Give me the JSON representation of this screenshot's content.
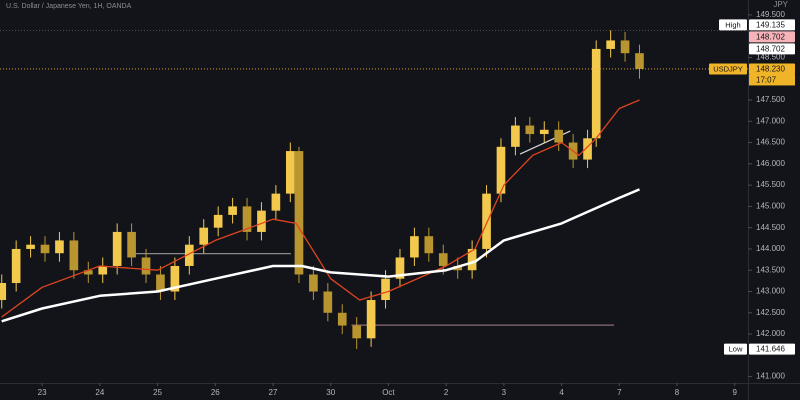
{
  "chart_data": {
    "type": "candlestick",
    "title": "U.S. Dollar / Japanese Yen, 1H, OANDA",
    "y_axis_label": "JPY",
    "x": [
      -0.7,
      -0.45,
      -0.2,
      0.05,
      0.3,
      0.55,
      0.8,
      1.05,
      1.3,
      1.55,
      1.8,
      2.05,
      2.3,
      2.55,
      2.8,
      3.05,
      3.3,
      3.55,
      3.8,
      4.05,
      4.3,
      4.45,
      4.7,
      4.95,
      5.2,
      5.45,
      5.7,
      5.95,
      6.2,
      6.45,
      6.7,
      6.95,
      7.2,
      7.45,
      7.7,
      7.95,
      8.2,
      8.45,
      8.7,
      8.95,
      9.2,
      9.45,
      9.6,
      9.85,
      10.1,
      10.35
    ],
    "open": [
      142.8,
      143.2,
      144.0,
      144.1,
      143.9,
      144.2,
      143.5,
      143.4,
      143.6,
      144.4,
      143.8,
      143.4,
      143.0,
      143.6,
      144.1,
      144.5,
      144.8,
      145.0,
      144.4,
      144.9,
      145.3,
      146.3,
      143.4,
      143.0,
      142.5,
      142.2,
      141.9,
      142.8,
      143.3,
      143.8,
      144.3,
      143.9,
      143.6,
      143.5,
      144.0,
      145.3,
      146.4,
      146.9,
      146.7,
      146.8,
      146.5,
      146.1,
      146.6,
      148.7,
      148.9,
      148.6
    ],
    "high": [
      143.4,
      144.2,
      144.3,
      144.3,
      144.4,
      144.4,
      143.7,
      143.8,
      144.6,
      144.6,
      144.0,
      143.6,
      143.8,
      144.3,
      144.7,
      145.0,
      145.2,
      145.2,
      145.1,
      145.5,
      146.5,
      146.4,
      143.6,
      143.2,
      142.7,
      142.4,
      143.0,
      143.5,
      144.0,
      144.5,
      144.5,
      144.1,
      143.8,
      144.2,
      145.5,
      146.6,
      147.1,
      147.1,
      147.0,
      147.0,
      146.7,
      146.8,
      148.9,
      149.135,
      149.1,
      148.8
    ],
    "low": [
      142.6,
      143.0,
      143.8,
      143.7,
      143.7,
      143.3,
      143.2,
      143.2,
      143.4,
      143.6,
      143.2,
      142.8,
      142.8,
      143.4,
      143.9,
      144.3,
      144.6,
      144.2,
      144.2,
      144.7,
      145.1,
      143.2,
      142.8,
      142.3,
      142.0,
      141.646,
      141.7,
      142.6,
      143.1,
      143.6,
      143.7,
      143.4,
      143.3,
      143.3,
      143.8,
      145.1,
      146.2,
      146.5,
      146.5,
      146.3,
      145.9,
      145.9,
      146.4,
      148.5,
      148.4,
      148.0
    ],
    "close": [
      143.2,
      144.0,
      144.1,
      143.9,
      144.2,
      143.5,
      143.4,
      143.6,
      144.4,
      143.8,
      143.4,
      143.0,
      143.6,
      144.1,
      144.5,
      144.8,
      145.0,
      144.4,
      144.9,
      145.3,
      146.3,
      143.4,
      143.0,
      142.5,
      142.2,
      141.9,
      142.8,
      143.3,
      143.8,
      144.3,
      143.9,
      143.6,
      143.5,
      144.0,
      145.3,
      146.4,
      146.9,
      146.7,
      146.8,
      146.5,
      146.1,
      146.6,
      148.7,
      148.9,
      148.6,
      148.23
    ],
    "up_color": "#f2c94c",
    "down_color": "#b8952e",
    "series": [
      {
        "color": "#e0451f",
        "x": [
          -0.7,
          0,
          1,
          2,
          3,
          4,
          4.4,
          5,
          5.5,
          6,
          7,
          7.5,
          8,
          8.5,
          9,
          9.3,
          9.6,
          10,
          10.35
        ],
        "values": [
          142.4,
          143.1,
          143.6,
          143.5,
          144.2,
          144.7,
          144.6,
          143.3,
          142.8,
          143.0,
          143.6,
          144.0,
          145.5,
          146.2,
          146.5,
          146.2,
          146.6,
          147.3,
          147.5
        ]
      },
      {
        "color": "#ffffff",
        "x": [
          -0.7,
          0,
          1,
          2,
          3,
          4,
          4.5,
          5,
          6,
          7,
          7.5,
          8,
          9,
          9.5,
          10,
          10.35
        ],
        "values": [
          142.3,
          142.6,
          142.9,
          143.0,
          143.3,
          143.6,
          143.6,
          143.45,
          143.35,
          143.5,
          143.7,
          144.2,
          144.6,
          144.9,
          145.2,
          145.4
        ]
      }
    ],
    "drawings": [
      {
        "color": "#8a8a8a",
        "x": [
          1.53,
          4.31
        ],
        "y": [
          143.89,
          143.89
        ]
      },
      {
        "color": "#8c6b78",
        "x": [
          5.36,
          9.91
        ],
        "y": [
          142.21,
          142.21
        ]
      },
      {
        "color": "#d8d8d8",
        "x": [
          8.28,
          9.15
        ],
        "y": [
          146.23,
          146.77
        ]
      }
    ],
    "price_labels": [
      {
        "name": "High",
        "value": 149.135,
        "color": "#ffffff",
        "text_color": "#131419"
      },
      {
        "value": 148.702,
        "color": "#f6b3b9",
        "text_color": "#131419"
      },
      {
        "value": 148.702,
        "color": "#ffffff",
        "text_color": "#131419"
      },
      {
        "name": "USDJPY",
        "value": 148.23,
        "label": "148.230",
        "countdown": "17:07",
        "color": "#f0b429",
        "text_color": "#131419"
      },
      {
        "name": "Low",
        "value": 141.646,
        "color": "#ffffff",
        "text_color": "#131419"
      }
    ],
    "xlim": [
      -0.73,
      12.23
    ],
    "xticks": [
      {
        "value": 0,
        "label": "23"
      },
      {
        "value": 1,
        "label": "24"
      },
      {
        "value": 2,
        "label": "25"
      },
      {
        "value": 3,
        "label": "26"
      },
      {
        "value": 4,
        "label": "27"
      },
      {
        "value": 5,
        "label": "30"
      },
      {
        "value": 6,
        "label": "Oct"
      },
      {
        "value": 7,
        "label": "2"
      },
      {
        "value": 8,
        "label": "3"
      },
      {
        "value": 9,
        "label": "4"
      },
      {
        "value": 10,
        "label": "7"
      },
      {
        "value": 11,
        "label": "8"
      },
      {
        "value": 12,
        "label": "9"
      }
    ],
    "ylim": [
      140.85,
      149.85
    ],
    "yticks": [
      {
        "value": 141,
        "label": "141.000"
      },
      {
        "value": 142,
        "label": "142.000"
      },
      {
        "value": 142.5,
        "label": "142.500"
      },
      {
        "value": 143,
        "label": "143.000"
      },
      {
        "value": 143.5,
        "label": "143.500"
      },
      {
        "value": 144,
        "label": "144.000"
      },
      {
        "value": 144.5,
        "label": "144.500"
      },
      {
        "value": 145,
        "label": "145.000"
      },
      {
        "value": 145.5,
        "label": "145.500"
      },
      {
        "value": 146,
        "label": "146.000"
      },
      {
        "value": 146.5,
        "label": "146.500"
      },
      {
        "value": 147,
        "label": "147.000"
      },
      {
        "value": 147.5,
        "label": "147.500"
      },
      {
        "value": 148.5,
        "label": "148.500"
      },
      {
        "value": 149.5,
        "label": "149.500"
      }
    ],
    "grid": false
  }
}
